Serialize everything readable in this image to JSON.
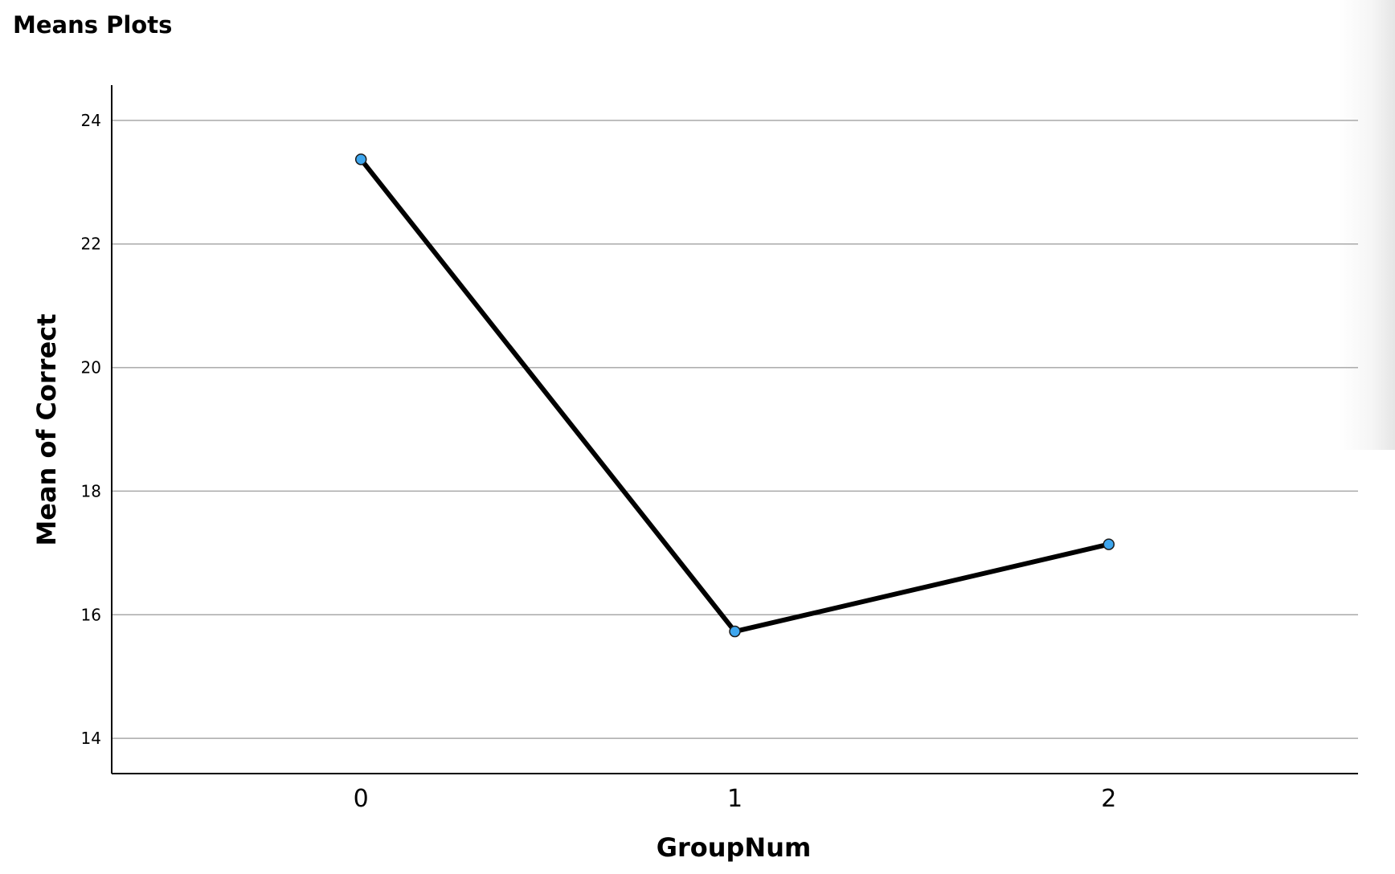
{
  "header": {
    "title": "Means Plots"
  },
  "chart_data": {
    "type": "line",
    "title": "",
    "xlabel": "GroupNum",
    "ylabel": "Mean of Correct",
    "categories": [
      "0",
      "1",
      "2"
    ],
    "series": [
      {
        "values": [
          23.37,
          15.73,
          17.14
        ],
        "color": "#000000",
        "marker_color": "#3ea6ee"
      }
    ],
    "yticks": [
      "14",
      "16",
      "18",
      "20",
      "22",
      "24"
    ],
    "ylim": [
      13.43,
      24.57
    ],
    "grid": true,
    "legend": "none"
  }
}
